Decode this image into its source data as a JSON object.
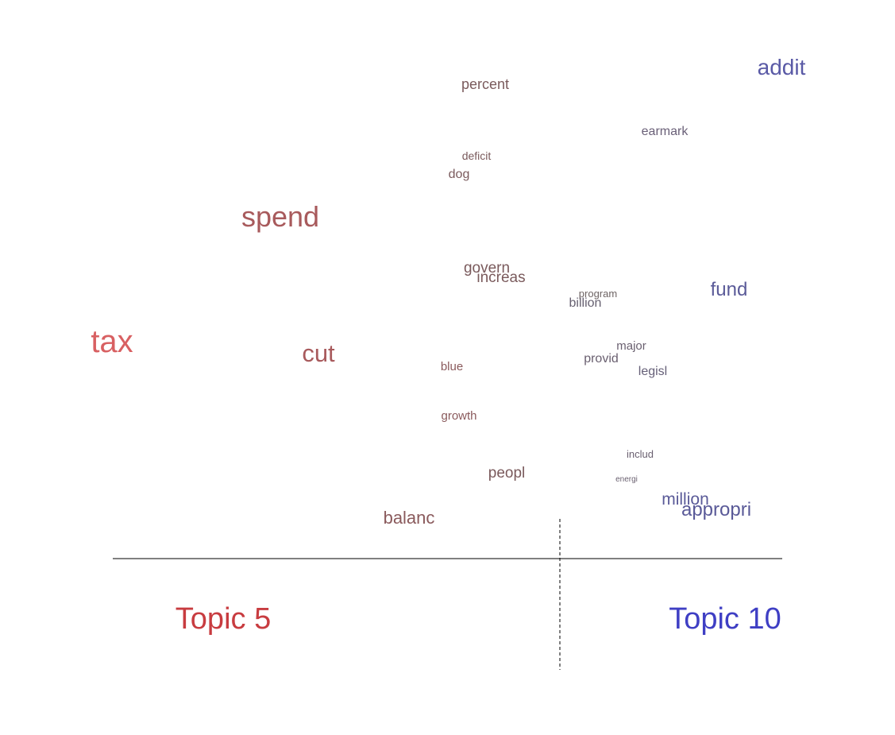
{
  "chart_data": {
    "type": "scatter",
    "title": "",
    "xlabel": "",
    "ylabel": "",
    "topics": [
      {
        "label": "Topic 5",
        "color": "#c83c40"
      },
      {
        "label": "Topic 10",
        "color": "#3f3fc4"
      }
    ],
    "words": [
      {
        "word": "addit",
        "size": 28,
        "color": "#5a5aa6"
      },
      {
        "word": "percent",
        "size": 18,
        "color": "#7a5a5c"
      },
      {
        "word": "earmark",
        "size": 16,
        "color": "#6a6078"
      },
      {
        "word": "deficit",
        "size": 14,
        "color": "#7a5a5c"
      },
      {
        "word": "dog",
        "size": 16,
        "color": "#7a5a5c"
      },
      {
        "word": "spend",
        "size": 36,
        "color": "#a85a5c"
      },
      {
        "word": "govern",
        "size": 19,
        "color": "#7a5a5c"
      },
      {
        "word": "increas",
        "size": 19,
        "color": "#7a5a5c"
      },
      {
        "word": "fund",
        "size": 24,
        "color": "#5a5a98"
      },
      {
        "word": "program",
        "size": 13,
        "color": "#6e6464"
      },
      {
        "word": "billion",
        "size": 16,
        "color": "#666070"
      },
      {
        "word": "tax",
        "size": 40,
        "color": "#d86062"
      },
      {
        "word": "cut",
        "size": 31,
        "color": "#a85a5c"
      },
      {
        "word": "major",
        "size": 15,
        "color": "#6a6070"
      },
      {
        "word": "provid",
        "size": 16,
        "color": "#6a6070"
      },
      {
        "word": "legisl",
        "size": 16,
        "color": "#666078"
      },
      {
        "word": "blue",
        "size": 15,
        "color": "#8a5a5c"
      },
      {
        "word": "growth",
        "size": 15,
        "color": "#8a5a5c"
      },
      {
        "word": "includ",
        "size": 13,
        "color": "#6a6070"
      },
      {
        "word": "peopl",
        "size": 19,
        "color": "#7a5a5c"
      },
      {
        "word": "energi",
        "size": 10,
        "color": "#6a6070"
      },
      {
        "word": "million",
        "size": 21,
        "color": "#5a5a98"
      },
      {
        "word": "appropri",
        "size": 24,
        "color": "#5a5a98"
      },
      {
        "word": "balanc",
        "size": 22,
        "color": "#8a5a5c"
      }
    ]
  }
}
